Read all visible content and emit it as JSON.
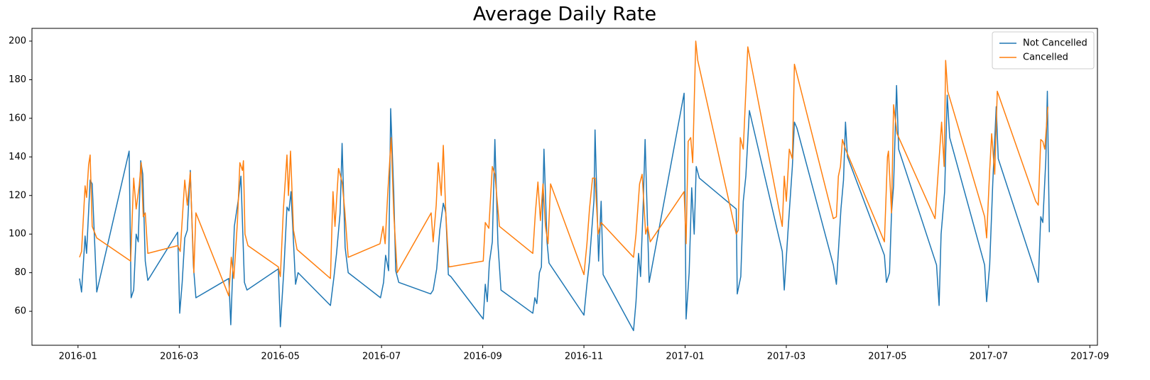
{
  "chart_data": {
    "type": "line",
    "title": "Average Daily Rate",
    "xlim": [
      -0.91,
      20.15
    ],
    "ylim": [
      42.4,
      206.6
    ],
    "xticks": [
      {
        "value": 0,
        "label": "2016-01"
      },
      {
        "value": 2,
        "label": "2016-03"
      },
      {
        "value": 4,
        "label": "2016-05"
      },
      {
        "value": 6,
        "label": "2016-07"
      },
      {
        "value": 8,
        "label": "2016-09"
      },
      {
        "value": 10,
        "label": "2016-11"
      },
      {
        "value": 12,
        "label": "2017-01"
      },
      {
        "value": 14,
        "label": "2017-03"
      },
      {
        "value": 16,
        "label": "2017-05"
      },
      {
        "value": 18,
        "label": "2017-07"
      },
      {
        "value": 20,
        "label": "2017-09"
      }
    ],
    "yticks": [
      60,
      80,
      100,
      120,
      140,
      160,
      180,
      200
    ],
    "legend": "upper right",
    "grid": false,
    "series": [
      {
        "name": "Not Cancelled",
        "color": "#1f77b4",
        "x": [
          0.03,
          0.07,
          0.14,
          0.17,
          0.24,
          0.28,
          0.37,
          1.01,
          1.05,
          1.1,
          1.15,
          1.19,
          1.24,
          1.28,
          1.33,
          1.38,
          1.97,
          2.01,
          2.06,
          2.11,
          2.16,
          2.22,
          2.28,
          2.33,
          2.98,
          3.02,
          3.09,
          3.17,
          3.22,
          3.29,
          3.34,
          3.96,
          4.0,
          4.07,
          4.13,
          4.17,
          4.21,
          4.3,
          4.35,
          4.99,
          5.06,
          5.11,
          5.18,
          5.22,
          5.28,
          5.34,
          5.98,
          6.04,
          6.08,
          6.14,
          6.18,
          6.24,
          6.28,
          6.34,
          6.97,
          7.02,
          7.09,
          7.15,
          7.22,
          7.27,
          7.32,
          7.37,
          8.01,
          8.05,
          8.09,
          8.13,
          8.19,
          8.24,
          8.3,
          8.36,
          8.99,
          9.03,
          9.07,
          9.12,
          9.16,
          9.21,
          9.27,
          9.31,
          10.0,
          10.06,
          10.11,
          10.2,
          10.22,
          10.29,
          10.34,
          10.38,
          10.98,
          11.03,
          11.08,
          11.12,
          11.17,
          11.21,
          11.29,
          11.98,
          12.02,
          12.08,
          12.13,
          12.18,
          12.22,
          12.28,
          13.01,
          13.03,
          13.1,
          13.15,
          13.2,
          13.27,
          13.92,
          13.96,
          14.04,
          14.12,
          14.16,
          14.21,
          14.93,
          14.99,
          15.03,
          15.08,
          15.13,
          15.17,
          15.21,
          15.94,
          15.98,
          16.04,
          16.08,
          16.12,
          16.18,
          16.22,
          16.97,
          17.02,
          17.06,
          17.13,
          17.18,
          17.23,
          17.92,
          17.96,
          18.02,
          18.08,
          18.15,
          18.19,
          18.95,
          18.98,
          19.03,
          19.07,
          19.13,
          19.16,
          19.2
        ],
        "values": [
          77,
          70,
          99,
          90,
          128,
          126,
          70,
          143,
          67,
          71,
          100,
          96,
          138,
          131,
          86,
          76,
          101,
          59,
          75,
          98,
          102,
          133,
          84,
          67,
          77,
          53,
          104,
          118,
          130,
          75,
          71,
          82,
          52,
          82,
          114,
          112,
          122,
          74,
          80,
          63,
          78,
          90,
          111,
          147,
          93,
          80,
          67,
          75,
          89,
          81,
          165,
          122,
          81,
          75,
          69,
          71,
          82,
          102,
          116,
          111,
          79,
          78,
          56,
          74,
          65,
          85,
          96,
          149,
          95,
          71,
          59,
          67,
          64,
          80,
          83,
          144,
          96,
          85,
          58,
          74,
          86,
          118,
          154,
          86,
          117,
          79,
          50,
          65,
          90,
          78,
          114,
          149,
          75,
          173,
          56,
          80,
          124,
          100,
          135,
          129,
          113,
          69,
          78,
          117,
          130,
          164,
          91,
          71,
          104,
          135,
          158,
          155,
          84,
          74,
          91,
          113,
          128,
          158,
          140,
          89,
          75,
          80,
          111,
          125,
          177,
          144,
          84,
          63,
          100,
          122,
          172,
          150,
          84,
          65,
          84,
          126,
          166,
          139,
          78,
          75,
          109,
          106,
          139,
          174,
          101
        ]
      },
      {
        "name": "Cancelled",
        "color": "#ff7f0e",
        "x": [
          0.03,
          0.07,
          0.14,
          0.17,
          0.21,
          0.24,
          0.28,
          0.37,
          1.04,
          1.1,
          1.15,
          1.21,
          1.25,
          1.29,
          1.33,
          1.38,
          1.97,
          2.02,
          2.11,
          2.16,
          2.22,
          2.29,
          2.33,
          2.98,
          3.03,
          3.08,
          3.15,
          3.2,
          3.25,
          3.27,
          3.3,
          3.36,
          3.96,
          4.0,
          4.06,
          4.13,
          4.16,
          4.2,
          4.26,
          4.33,
          4.99,
          5.04,
          5.08,
          5.15,
          5.22,
          5.27,
          5.34,
          5.97,
          6.03,
          6.07,
          6.12,
          6.19,
          6.24,
          6.31,
          6.98,
          7.02,
          7.08,
          7.12,
          7.18,
          7.22,
          7.27,
          7.33,
          8.01,
          8.05,
          8.12,
          8.19,
          8.24,
          8.33,
          8.99,
          9.04,
          9.09,
          9.14,
          9.19,
          9.24,
          9.29,
          9.34,
          10.0,
          10.06,
          10.11,
          10.17,
          10.22,
          10.28,
          10.34,
          10.98,
          11.03,
          11.1,
          11.15,
          11.22,
          11.26,
          11.31,
          11.98,
          12.02,
          12.06,
          12.11,
          12.15,
          12.21,
          12.25,
          13.01,
          13.05,
          13.09,
          13.15,
          13.2,
          13.24,
          13.92,
          13.96,
          14.0,
          14.06,
          14.12,
          14.16,
          14.93,
          14.99,
          15.03,
          15.07,
          15.11,
          15.17,
          15.94,
          16.0,
          16.02,
          16.08,
          16.12,
          16.19,
          16.94,
          17.0,
          17.07,
          17.12,
          17.15,
          17.19,
          17.92,
          17.96,
          18.02,
          18.06,
          18.12,
          18.17,
          18.93,
          18.98,
          19.03,
          19.07,
          19.11,
          19.17
        ],
        "values": [
          88,
          91,
          125,
          119,
          136,
          141,
          104,
          98,
          86,
          129,
          113,
          125,
          137,
          109,
          111,
          90,
          94,
          91,
          128,
          115,
          132,
          80,
          111,
          68,
          88,
          77,
          106,
          137,
          133,
          138,
          100,
          94,
          83,
          78,
          113,
          141,
          120,
          143,
          102,
          92,
          77,
          122,
          104,
          134,
          127,
          113,
          88,
          95,
          104,
          95,
          120,
          150,
          111,
          80,
          111,
          96,
          115,
          137,
          120,
          146,
          111,
          83,
          86,
          106,
          103,
          135,
          131,
          104,
          90,
          111,
          127,
          107,
          126,
          104,
          95,
          126,
          79,
          95,
          113,
          129,
          129,
          100,
          106,
          88,
          100,
          126,
          131,
          100,
          104,
          96,
          122,
          95,
          148,
          150,
          137,
          200,
          190,
          100,
          102,
          150,
          144,
          174,
          197,
          104,
          130,
          117,
          144,
          139,
          188,
          108,
          109,
          130,
          135,
          149,
          144,
          96,
          140,
          143,
          111,
          167,
          152,
          108,
          131,
          158,
          135,
          190,
          174,
          109,
          98,
          133,
          152,
          131,
          174,
          117,
          115,
          149,
          148,
          144,
          166
        ]
      }
    ]
  }
}
